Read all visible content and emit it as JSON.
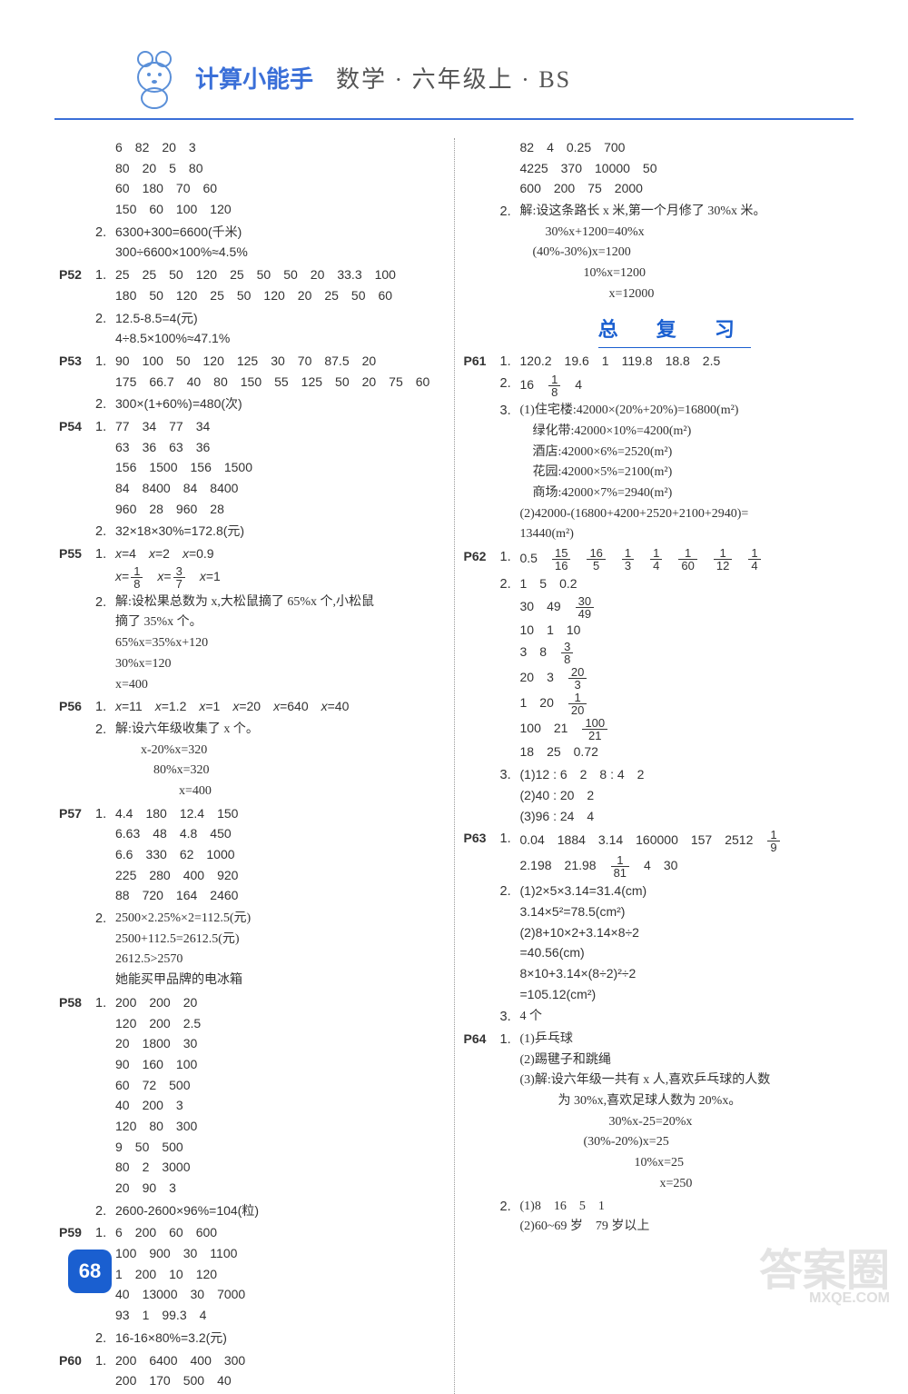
{
  "header": {
    "title_left": "计算小能手",
    "title_right": "数学 · 六年级上 · BS",
    "brand_color": "#3a6fd8"
  },
  "page_badge": "68",
  "watermark": {
    "main": "答案圈",
    "sub": "MXQE.COM"
  },
  "left_column": [
    {
      "page": "",
      "items": [
        {
          "num": "",
          "lines": [
            "6　82　20　3",
            "80　20　5　80",
            "60　180　70　60",
            "150　60　100　120"
          ]
        },
        {
          "num": "2.",
          "lines": [
            "6300+300=6600(千米)",
            "300÷6600×100%≈4.5%"
          ]
        }
      ]
    },
    {
      "page": "P52",
      "items": [
        {
          "num": "1.",
          "lines": [
            "25　25　50　120　25　50　50　20　33.3　100",
            "180　50　120　25　50　120　20　25　50　60"
          ]
        },
        {
          "num": "2.",
          "lines": [
            "12.5-8.5=4(元)",
            "4÷8.5×100%≈47.1%"
          ]
        }
      ]
    },
    {
      "page": "P53",
      "items": [
        {
          "num": "1.",
          "lines": [
            "90　100　50　120　125　30　70　87.5　20",
            "175　66.7　40　80　150　55　125　50　20　75　60"
          ]
        },
        {
          "num": "2.",
          "lines": [
            "300×(1+60%)=480(次)"
          ]
        }
      ]
    },
    {
      "page": "P54",
      "items": [
        {
          "num": "1.",
          "lines": [
            "77　34　77　34",
            "63　36　63　36",
            "156　1500　156　1500",
            "84　8400　84　8400",
            "960　28　960　28"
          ]
        },
        {
          "num": "2.",
          "lines": [
            "32×18×30%=172.8(元)"
          ]
        }
      ]
    },
    {
      "page": "P55",
      "items": [
        {
          "num": "1.",
          "lines_html": [
            "<i>x</i>=4　<i>x</i>=2　<i>x</i>=0.9",
            "<i>x</i>=<span class='frac'><span class='n'>1</span><span class='d'>8</span></span>　<i>x</i>=<span class='frac'><span class='n'>3</span><span class='d'>7</span></span>　<i>x</i>=1"
          ]
        },
        {
          "num": "2.",
          "lines": [
            "解:设松果总数为 x,大松鼠摘了 65%x 个,小松鼠",
            "摘了 35%x 个。",
            "65%x=35%x+120",
            "30%x=120",
            "x=400"
          ],
          "cn": true
        }
      ]
    },
    {
      "page": "P56",
      "items": [
        {
          "num": "1.",
          "lines_html": [
            "<i>x</i>=11　<i>x</i>=1.2　<i>x</i>=1　<i>x</i>=20　<i>x</i>=640　<i>x</i>=40"
          ]
        },
        {
          "num": "2.",
          "lines": [
            "解:设六年级收集了 x 个。",
            "　　x-20%x=320",
            "　　　80%x=320",
            "　　　　　x=400"
          ],
          "cn": true
        }
      ]
    },
    {
      "page": "P57",
      "items": [
        {
          "num": "1.",
          "lines": [
            "4.4　180　12.4　150",
            "6.63　48　4.8　450",
            "6.6　330　62　1000",
            "225　280　400　920",
            "88　720　164　2460"
          ]
        },
        {
          "num": "2.",
          "lines": [
            "2500×2.25%×2=112.5(元)",
            "2500+112.5=2612.5(元)",
            "2612.5>2570",
            "她能买甲品牌的电冰箱"
          ],
          "cn": true
        }
      ]
    },
    {
      "page": "P58",
      "items": [
        {
          "num": "1.",
          "lines": [
            "200　200　20",
            "120　200　2.5",
            "20　1800　30",
            "90　160　100",
            "60　72　500",
            "40　200　3",
            "120　80　300",
            "9　50　500",
            "80　2　3000",
            "20　90　3"
          ]
        },
        {
          "num": "2.",
          "lines": [
            "2600-2600×96%=104(粒)"
          ]
        }
      ]
    },
    {
      "page": "P59",
      "items": [
        {
          "num": "1.",
          "lines": [
            "6　200　60　600",
            "100　900　30　1100",
            "1　200　10　120",
            "40　13000　30　7000",
            "93　1　99.3　4"
          ]
        },
        {
          "num": "2.",
          "lines": [
            "16-16×80%=3.2(元)"
          ]
        }
      ]
    },
    {
      "page": "P60",
      "items": [
        {
          "num": "1.",
          "lines": [
            "200　6400　400　300",
            "200　170　500　40"
          ]
        }
      ]
    }
  ],
  "right_column": [
    {
      "page": "",
      "items": [
        {
          "num": "",
          "lines": [
            "82　4　0.25　700",
            "4225　370　10000　50",
            "600　200　75　2000"
          ]
        },
        {
          "num": "2.",
          "lines": [
            "解:设这条路长 x 米,第一个月修了 30%x 米。",
            "　　30%x+1200=40%x",
            "　(40%-30%)x=1200",
            "　　　　　10%x=1200",
            "　　　　　　　x=12000"
          ],
          "cn": true
        }
      ]
    },
    {
      "section": "总 复 习"
    },
    {
      "page": "P61",
      "items": [
        {
          "num": "1.",
          "lines": [
            "120.2　19.6　1　119.8　18.8　2.5"
          ]
        },
        {
          "num": "2.",
          "lines_html": [
            "16　<span class='frac'><span class='n'>1</span><span class='d'>8</span></span>　4"
          ]
        },
        {
          "num": "3.",
          "lines": [
            "(1)住宅楼:42000×(20%+20%)=16800(m²)",
            "　绿化带:42000×10%=4200(m²)",
            "　酒店:42000×6%=2520(m²)",
            "　花园:42000×5%=2100(m²)",
            "　商场:42000×7%=2940(m²)",
            "(2)42000-(16800+4200+2520+2100+2940)=",
            "13440(m²)"
          ],
          "cn": true
        }
      ]
    },
    {
      "page": "P62",
      "items": [
        {
          "num": "1.",
          "lines_html": [
            "0.5　<span class='frac'><span class='n'>15</span><span class='d'>16</span></span>　<span class='frac'><span class='n'>16</span><span class='d'>5</span></span>　<span class='frac'><span class='n'>1</span><span class='d'>3</span></span>　<span class='frac'><span class='n'>1</span><span class='d'>4</span></span>　<span class='frac'><span class='n'>1</span><span class='d'>60</span></span>　<span class='frac'><span class='n'>1</span><span class='d'>12</span></span>　<span class='frac'><span class='n'>1</span><span class='d'>4</span></span>"
          ]
        },
        {
          "num": "2.",
          "lines_html": [
            "1　5　0.2",
            "30　49　<span class='frac'><span class='n'>30</span><span class='d'>49</span></span>",
            "10　1　10",
            "3　8　<span class='frac'><span class='n'>3</span><span class='d'>8</span></span>",
            "20　3　<span class='frac'><span class='n'>20</span><span class='d'>3</span></span>",
            "1　20　<span class='frac'><span class='n'>1</span><span class='d'>20</span></span>",
            "100　21　<span class='frac'><span class='n'>100</span><span class='d'>21</span></span>",
            "18　25　0.72"
          ]
        },
        {
          "num": "3.",
          "lines": [
            "(1)12 : 6　2　8 : 4　2",
            "(2)40 : 20　2",
            "(3)96 : 24　4"
          ]
        }
      ]
    },
    {
      "page": "P63",
      "items": [
        {
          "num": "1.",
          "lines_html": [
            "0.04　1884　3.14　160000　157　2512　<span class='frac'><span class='n'>1</span><span class='d'>9</span></span>",
            "2.198　21.98　<span class='frac'><span class='n'>1</span><span class='d'>81</span></span>　4　30"
          ]
        },
        {
          "num": "2.",
          "lines": [
            "(1)2×5×3.14=31.4(cm)",
            "3.14×5²=78.5(cm²)",
            "(2)8+10×2+3.14×8÷2",
            "=40.56(cm)",
            "8×10+3.14×(8÷2)²÷2",
            "=105.12(cm²)"
          ]
        },
        {
          "num": "3.",
          "lines": [
            "4 个"
          ],
          "cn": true
        }
      ]
    },
    {
      "page": "P64",
      "items": [
        {
          "num": "1.",
          "lines": [
            "(1)乒乓球",
            "(2)踢毽子和跳绳",
            "(3)解:设六年级一共有 x 人,喜欢乒乓球的人数",
            "　　　为 30%x,喜欢足球人数为 20%x。",
            "　　　　　　　30%x-25=20%x",
            "　　　　　(30%-20%)x=25",
            "　　　　　　　　　10%x=25",
            "　　　　　　　　　　　x=250"
          ],
          "cn": true
        },
        {
          "num": "2.",
          "lines": [
            "(1)8　16　5　1",
            "(2)60~69 岁　79 岁以上"
          ],
          "cn": true
        }
      ]
    }
  ]
}
